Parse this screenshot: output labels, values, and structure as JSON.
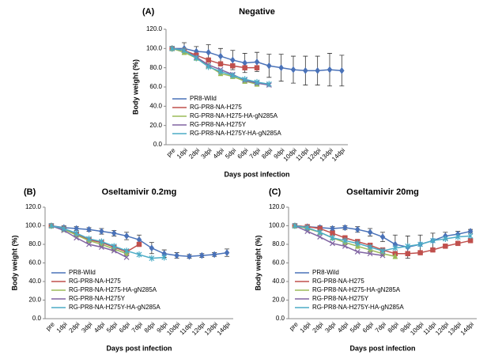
{
  "chart_data": [
    {
      "type": "line",
      "panel_label": "(A)",
      "title": "Negative",
      "y_label": "Body weight (%)",
      "x_label": "Days post infection",
      "categories": [
        "pre",
        "1dpi",
        "2dpi",
        "3dpi",
        "4dpi",
        "5dpi",
        "6dpi",
        "7dpi",
        "8dpi",
        "9dpi",
        "10dpi",
        "11dpi",
        "12dpi",
        "13dpi",
        "14dpi"
      ],
      "ylim": [
        0,
        120
      ],
      "yticks": [
        {
          "value": 0,
          "label": "0.0"
        },
        {
          "value": 20,
          "label": "20.0"
        },
        {
          "value": 40,
          "label": "40.0"
        },
        {
          "value": 60,
          "label": "60.0"
        },
        {
          "value": 80,
          "label": "80.0"
        },
        {
          "value": 100,
          "label": "100.0"
        },
        {
          "value": 120,
          "label": "120.0"
        }
      ],
      "legend": "lower left",
      "series": [
        {
          "name": "PR8-Wild",
          "color": "#4a72b8",
          "marker": "diamond",
          "values": [
            100,
            100,
            97,
            96,
            92,
            88,
            85,
            86,
            82,
            80,
            78,
            77,
            77,
            78,
            77
          ],
          "errors": [
            2,
            6,
            5,
            8,
            8,
            10,
            10,
            10,
            12,
            14,
            14,
            15,
            15,
            17,
            16
          ]
        },
        {
          "name": "RG-PR8-NA-H275",
          "color": "#c0504d",
          "marker": "square",
          "values": [
            100,
            98,
            93,
            88,
            84,
            82,
            80,
            80,
            null,
            null,
            null,
            null,
            null,
            null,
            null
          ]
        },
        {
          "name": "RG-PR8-NA-H275-HA-gN285A",
          "color": "#9bbb59",
          "marker": "triangle",
          "values": [
            100,
            96,
            90,
            82,
            74,
            71,
            66,
            63,
            null,
            null,
            null,
            null,
            null,
            null,
            null
          ]
        },
        {
          "name": "RG-PR8-NA-H275Y",
          "color": "#8064a2",
          "marker": "x",
          "values": [
            100,
            98,
            91,
            83,
            78,
            73,
            67,
            64,
            62,
            null,
            null,
            null,
            null,
            null,
            null
          ]
        },
        {
          "name": "RG-PR8-NA-H275Y-HA-gN285A",
          "color": "#4bacc6",
          "marker": "star",
          "values": [
            100,
            98,
            90,
            81,
            76,
            72,
            68,
            65,
            63,
            null,
            null,
            null,
            null,
            null,
            null
          ]
        }
      ]
    },
    {
      "type": "line",
      "panel_label": "(B)",
      "title": "Oseltamivir 0.2mg",
      "y_label": "Body weight (%)",
      "x_label": "Days post infection",
      "categories": [
        "pre",
        "1dpi",
        "2dpi",
        "3dpi",
        "4dpi",
        "5dpi",
        "6dpi",
        "7dpi",
        "8dpi",
        "9dpi",
        "10dpi",
        "11dpi",
        "12dpi",
        "13dpi",
        "14dpi"
      ],
      "ylim": [
        0,
        120
      ],
      "yticks": [
        {
          "value": 0,
          "label": "0.0"
        },
        {
          "value": 20,
          "label": "20.0"
        },
        {
          "value": 40,
          "label": "40.0"
        },
        {
          "value": 60,
          "label": "60.0"
        },
        {
          "value": 80,
          "label": "80.0"
        },
        {
          "value": 100,
          "label": "100.0"
        },
        {
          "value": 120,
          "label": "120.0"
        }
      ],
      "legend": "lower left",
      "series": [
        {
          "name": "PR8-Wild",
          "color": "#4a72b8",
          "marker": "diamond",
          "values": [
            100,
            98,
            97,
            96,
            94,
            92,
            89,
            85,
            76,
            70,
            68,
            67,
            68,
            69,
            71
          ],
          "errors": [
            1,
            2,
            2,
            2,
            3,
            3,
            4,
            5,
            6,
            4,
            3,
            2,
            2,
            2,
            4
          ]
        },
        {
          "name": "RG-PR8-NA-H275",
          "color": "#c0504d",
          "marker": "square",
          "values": [
            100,
            97,
            91,
            85,
            82,
            77,
            72,
            80,
            null,
            null,
            null,
            null,
            null,
            null,
            null
          ]
        },
        {
          "name": "RG-PR8-NA-H275-HA-gN285A",
          "color": "#9bbb59",
          "marker": "triangle",
          "values": [
            100,
            96,
            90,
            84,
            80,
            75,
            70,
            null,
            null,
            null,
            null,
            null,
            null,
            null,
            null
          ]
        },
        {
          "name": "RG-PR8-NA-H275Y",
          "color": "#8064a2",
          "marker": "x",
          "values": [
            100,
            95,
            87,
            80,
            77,
            73,
            66,
            null,
            null,
            null,
            null,
            null,
            null,
            null,
            null
          ]
        },
        {
          "name": "RG-PR8-NA-H275Y-HA-gN285A",
          "color": "#4bacc6",
          "marker": "star",
          "values": [
            100,
            97,
            92,
            86,
            83,
            78,
            73,
            69,
            65,
            66,
            null,
            null,
            null,
            null,
            null
          ]
        }
      ]
    },
    {
      "type": "line",
      "panel_label": "(C)",
      "title": "Oseltamivir 20mg",
      "y_label": "Body weight (%)",
      "x_label": "Days post infection",
      "categories": [
        "pre",
        "1dpi",
        "2dpi",
        "3dpi",
        "4dpi",
        "5dpi",
        "6dpi",
        "7dpi",
        "8dpi",
        "9dpi",
        "10dpi",
        "11dpi",
        "12dpi",
        "13dpi",
        "14dpi"
      ],
      "ylim": [
        0,
        120
      ],
      "yticks": [
        {
          "value": 0,
          "label": "0.0"
        },
        {
          "value": 20,
          "label": "20.0"
        },
        {
          "value": 40,
          "label": "40.0"
        },
        {
          "value": 60,
          "label": "60.0"
        },
        {
          "value": 80,
          "label": "80.0"
        },
        {
          "value": 100,
          "label": "100.0"
        },
        {
          "value": 120,
          "label": "120.0"
        }
      ],
      "legend": "lower left",
      "series": [
        {
          "name": "PR8-Wild",
          "color": "#4a72b8",
          "marker": "diamond",
          "values": [
            100,
            99,
            98,
            97,
            98,
            96,
            93,
            88,
            80,
            77,
            80,
            84,
            89,
            91,
            94
          ],
          "errors": [
            1,
            2,
            2,
            2,
            2,
            3,
            4,
            5,
            10,
            12,
            10,
            8,
            4,
            3,
            2
          ]
        },
        {
          "name": "RG-PR8-NA-H275",
          "color": "#c0504d",
          "marker": "square",
          "values": [
            100,
            99,
            97,
            92,
            87,
            83,
            79,
            74,
            70,
            70,
            71,
            74,
            78,
            81,
            84
          ]
        },
        {
          "name": "RG-PR8-NA-H275-HA-gN285A",
          "color": "#9bbb59",
          "marker": "triangle",
          "values": [
            100,
            97,
            93,
            87,
            82,
            78,
            74,
            70,
            67,
            null,
            null,
            null,
            null,
            null,
            null
          ]
        },
        {
          "name": "RG-PR8-NA-H275Y",
          "color": "#8064a2",
          "marker": "x",
          "values": [
            100,
            94,
            88,
            81,
            78,
            72,
            70,
            68,
            null,
            null,
            null,
            null,
            null,
            null,
            null
          ]
        },
        {
          "name": "RG-PR8-NA-H275Y-HA-gN285A",
          "color": "#4bacc6",
          "marker": "star",
          "values": [
            100,
            98,
            93,
            87,
            84,
            81,
            77,
            73,
            76,
            78,
            80,
            84,
            86,
            88,
            89
          ]
        }
      ]
    }
  ]
}
